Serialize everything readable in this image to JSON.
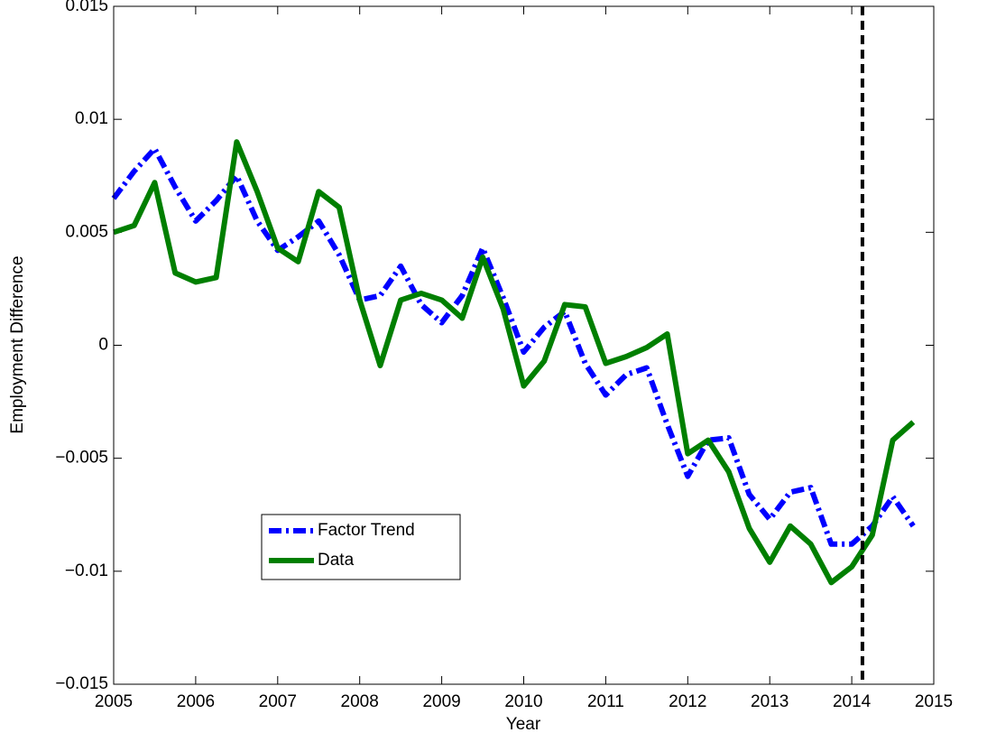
{
  "chart_data": {
    "type": "line",
    "xlabel": "Year",
    "ylabel": "Employment Difference",
    "x": [
      2005,
      2005.25,
      2005.5,
      2005.75,
      2006,
      2006.25,
      2006.5,
      2006.75,
      2007,
      2007.25,
      2007.5,
      2007.75,
      2008,
      2008.25,
      2008.5,
      2008.75,
      2009,
      2009.25,
      2009.5,
      2009.75,
      2010,
      2010.25,
      2010.5,
      2010.75,
      2011,
      2011.25,
      2011.5,
      2011.75,
      2012,
      2012.25,
      2012.5,
      2012.75,
      2013,
      2013.25,
      2013.5,
      2013.75,
      2014,
      2014.25,
      2014.5,
      2014.75
    ],
    "series": [
      {
        "name": "Factor Trend",
        "color": "#0000ff",
        "linestyle": "dashdot",
        "values": [
          0.0065,
          0.0077,
          0.0087,
          0.007,
          0.0055,
          0.0064,
          0.0075,
          0.0055,
          0.0042,
          0.0048,
          0.0055,
          0.004,
          0.002,
          0.0022,
          0.0035,
          0.0018,
          0.001,
          0.0022,
          0.0043,
          0.0021,
          -0.0003,
          0.0008,
          0.0015,
          -0.0008,
          -0.0022,
          -0.0013,
          -0.001,
          -0.0035,
          -0.0058,
          -0.0042,
          -0.0041,
          -0.0066,
          -0.0077,
          -0.0065,
          -0.0063,
          -0.0088,
          -0.0088,
          -0.008,
          -0.0067,
          -0.008
        ]
      },
      {
        "name": "Data",
        "color": "#007f00",
        "linestyle": "solid",
        "values": [
          0.005,
          0.0053,
          0.0072,
          0.0032,
          0.0028,
          0.003,
          0.009,
          0.0068,
          0.0043,
          0.0037,
          0.0068,
          0.0061,
          0.002,
          -0.0009,
          0.002,
          0.0023,
          0.002,
          0.0012,
          0.0039,
          0.0016,
          -0.0018,
          -0.0007,
          0.0018,
          0.0017,
          -0.0008,
          -0.0005,
          -0.0001,
          0.0005,
          -0.0048,
          -0.0042,
          -0.0056,
          -0.0081,
          -0.0096,
          -0.008,
          -0.0088,
          -0.0105,
          -0.0098,
          -0.0084,
          -0.0042,
          -0.0034
        ]
      }
    ],
    "vline": 2014.13,
    "xlim": [
      2005,
      2015
    ],
    "xticks": [
      2005,
      2006,
      2007,
      2008,
      2009,
      2010,
      2011,
      2012,
      2013,
      2014,
      2015
    ],
    "ylim": [
      -0.015,
      0.015
    ],
    "yticks": [
      {
        "value": -0.015,
        "label": "−0.015"
      },
      {
        "value": -0.01,
        "label": "−0.01"
      },
      {
        "value": -0.005,
        "label": "−0.005"
      },
      0,
      0.005,
      0.01,
      0.015
    ],
    "legend": "lower left",
    "grid": false
  }
}
